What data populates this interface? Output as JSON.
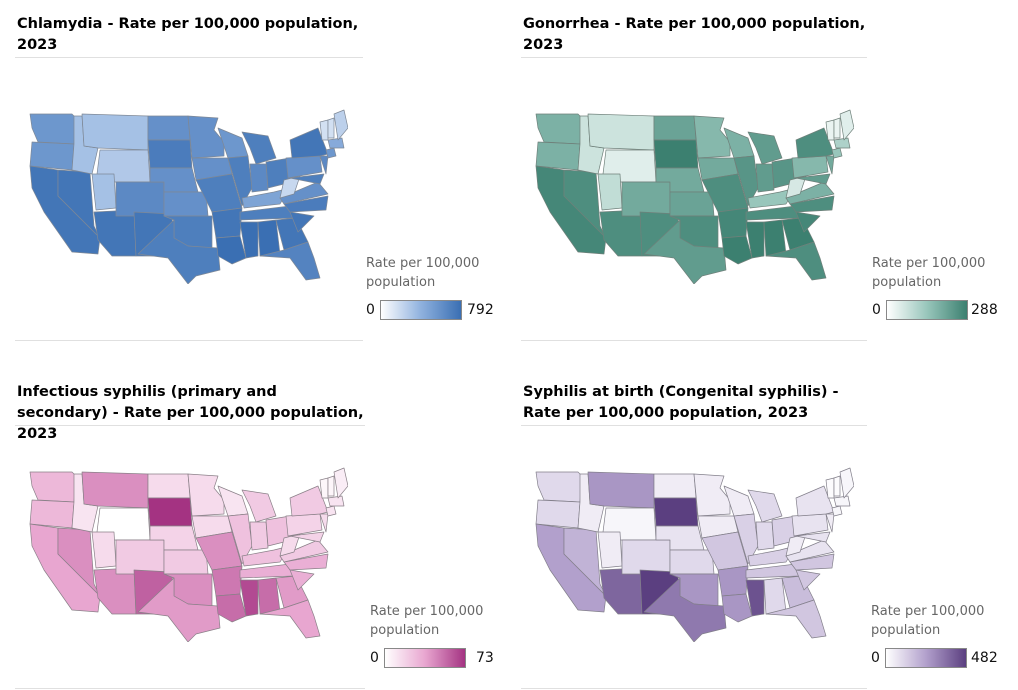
{
  "panels": [
    {
      "id": "chlamydia",
      "title": "Chlamydia - Rate per 100,000 population, 2023",
      "legend_title": "Rate per 100,000 population",
      "legend_min": "0",
      "legend_max": "792",
      "colors": {
        "light": "#ffffff",
        "mid": "#8fb1de",
        "dark": "#3a6fb3",
        "stroke": "#7e8896"
      }
    },
    {
      "id": "gonorrhea",
      "title": "Gonorrhea - Rate per 100,000 population, 2023",
      "legend_title": "Rate per 100,000 population",
      "legend_min": "0",
      "legend_max": "288",
      "colors": {
        "light": "#ffffff",
        "mid": "#98c6bb",
        "dark": "#3c8070",
        "stroke": "#6f807a"
      }
    },
    {
      "id": "syphilis",
      "title": "Infectious syphilis (primary and secondary) - Rate per 100,000 population, 2023",
      "legend_title": "Rate per 100,000 population",
      "legend_min": "0",
      "legend_max": "73",
      "colors": {
        "light": "#ffffff",
        "mid": "#e8a6d0",
        "dark": "#a43382",
        "stroke": "#8a8088"
      }
    },
    {
      "id": "congenital",
      "title": "Syphilis at birth (Congenital syphilis) - Rate per 100,000 population, 2023",
      "legend_title": "Rate per 100,000 population",
      "legend_min": "0",
      "legend_max": "482",
      "colors": {
        "light": "#ffffff",
        "mid": "#b2a0cc",
        "dark": "#5b3f80",
        "stroke": "#827f8a"
      }
    }
  ]
}
